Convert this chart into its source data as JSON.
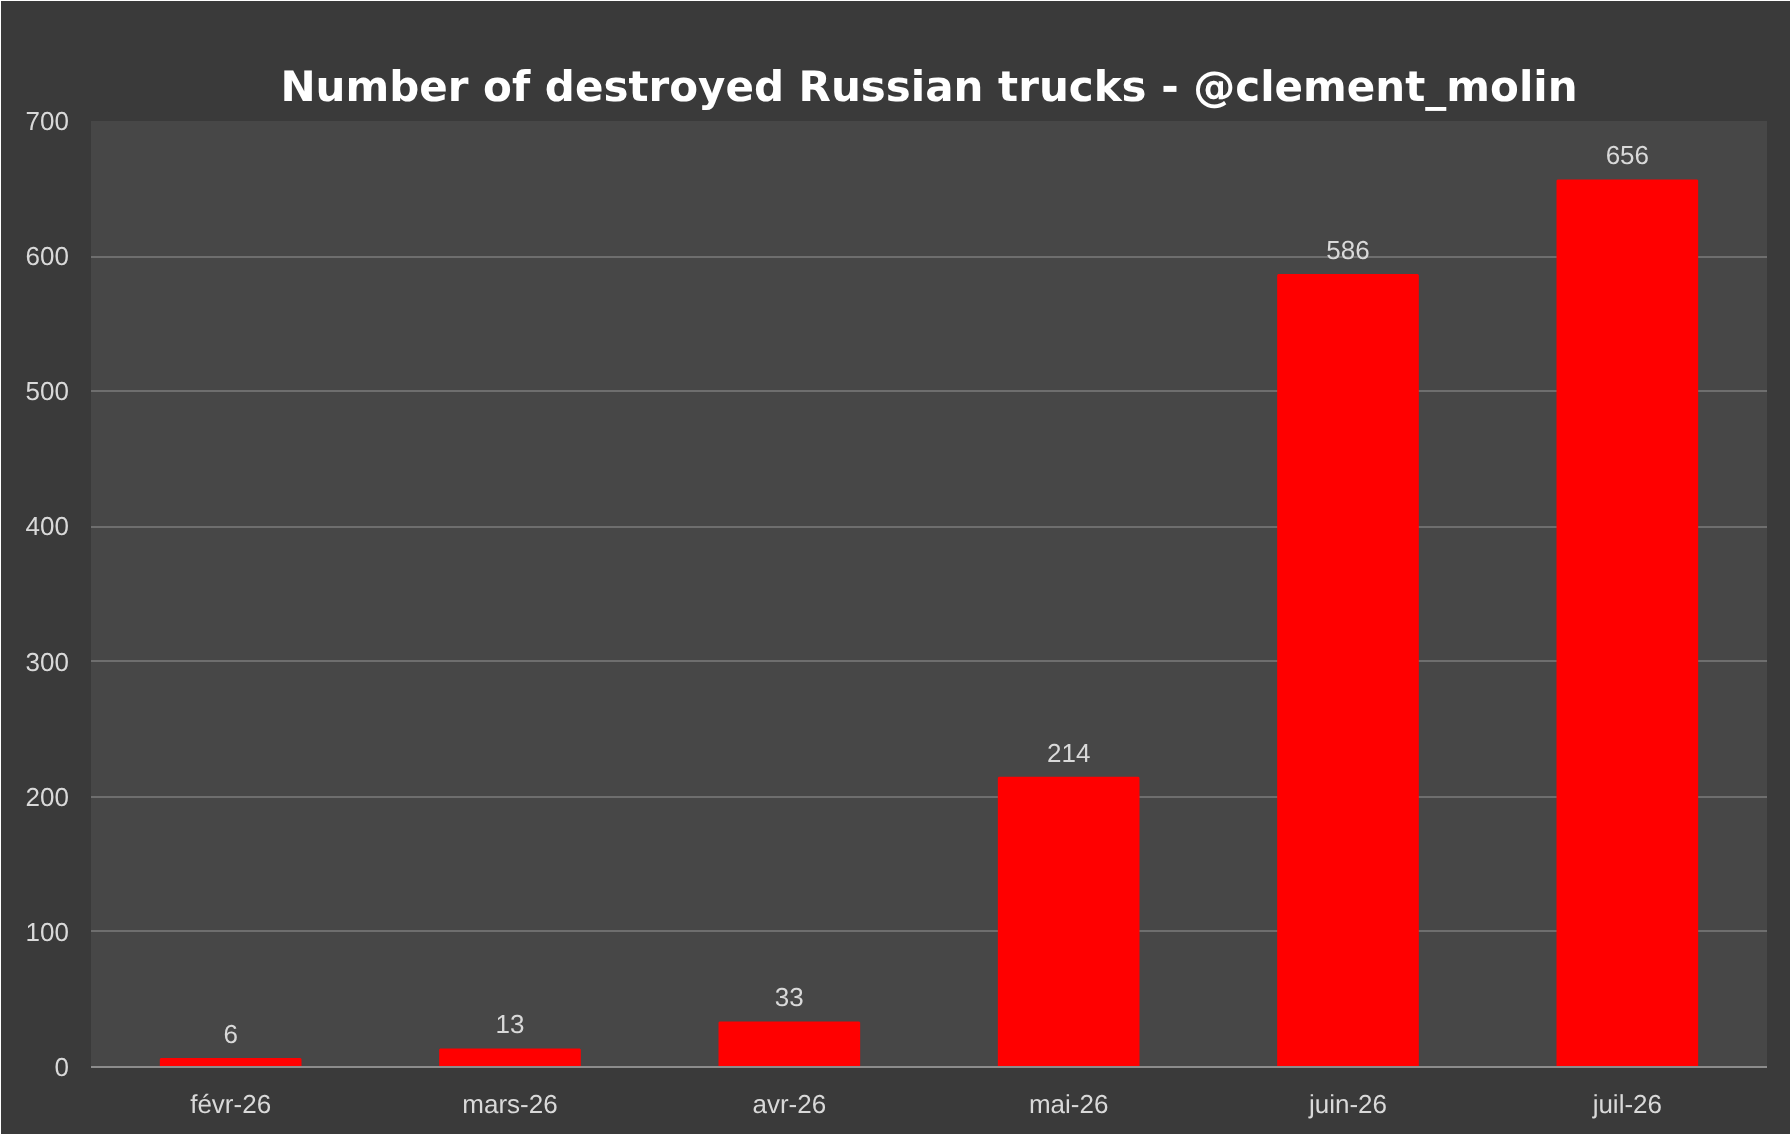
{
  "chart_data": {
    "type": "bar",
    "title": "Number of destroyed Russian trucks - @clement_molin",
    "categories": [
      "févr-26",
      "mars-26",
      "avr-26",
      "mai-26",
      "juin-26",
      "juil-26"
    ],
    "values": [
      6,
      13,
      33,
      214,
      586,
      656
    ],
    "color": "#ff0000",
    "ylim": [
      0,
      700
    ],
    "yticks": [
      0,
      100,
      200,
      300,
      400,
      500,
      600,
      700
    ],
    "grid": "y",
    "data_labels": true
  }
}
